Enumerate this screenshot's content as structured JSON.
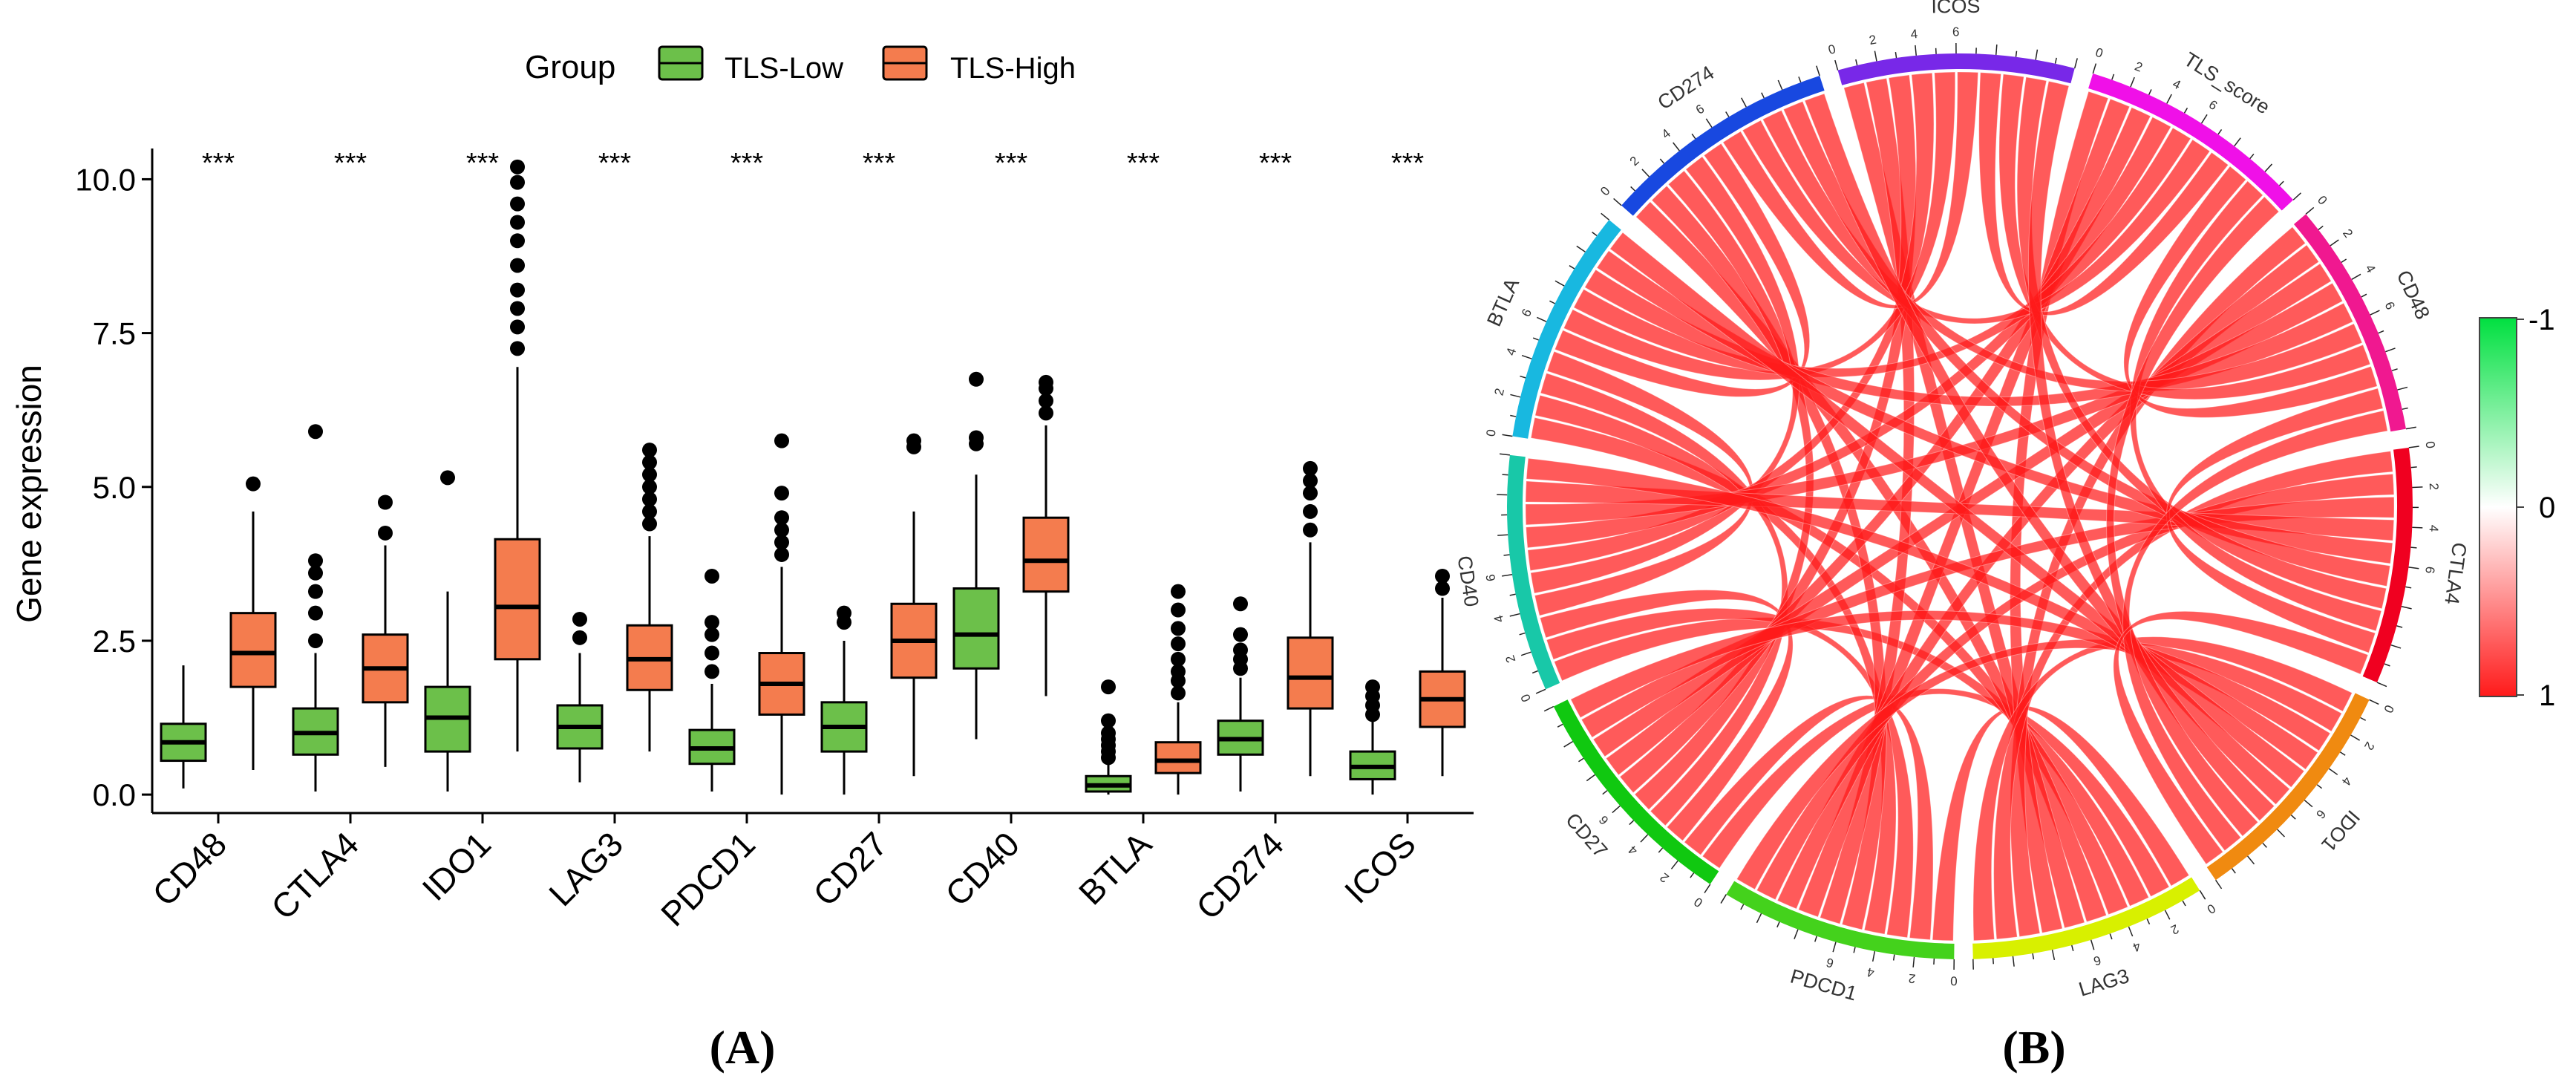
{
  "panel_labels": {
    "a": "(A)",
    "b": "(B)"
  },
  "colors": {
    "low": "#6CC04A",
    "high": "#F47C4E",
    "chord": "#FF1A1A",
    "axis": "#000000"
  },
  "chart_data": [
    {
      "type": "boxplot",
      "ylabel": "Gene expression",
      "xlabel": "",
      "ylim": [
        -0.3,
        10.5
      ],
      "yticks": [
        0.0,
        2.5,
        5.0,
        7.5,
        10.0
      ],
      "ytick_labels": [
        "0.0",
        "2.5",
        "5.0",
        "7.5",
        "10.0"
      ],
      "legend": {
        "title": "Group",
        "entries": [
          "TLS-Low",
          "TLS-High"
        ],
        "placement": "top"
      },
      "significance": "***",
      "categories": [
        "CD48",
        "CTLA4",
        "IDO1",
        "LAG3",
        "PDCD1",
        "CD27",
        "CD40",
        "BTLA",
        "CD274",
        "ICOS"
      ],
      "series": [
        {
          "name": "TLS-Low",
          "boxes": [
            {
              "wlo": 0.1,
              "q1": 0.55,
              "med": 0.85,
              "q3": 1.15,
              "whi": 2.1,
              "out": []
            },
            {
              "wlo": 0.05,
              "q1": 0.65,
              "med": 1.0,
              "q3": 1.4,
              "whi": 2.3,
              "out": [
                2.5,
                2.95,
                3.3,
                3.6,
                3.8,
                5.9
              ]
            },
            {
              "wlo": 0.05,
              "q1": 0.7,
              "med": 1.25,
              "q3": 1.75,
              "whi": 3.3,
              "out": [
                5.15
              ]
            },
            {
              "wlo": 0.2,
              "q1": 0.75,
              "med": 1.1,
              "q3": 1.45,
              "whi": 2.3,
              "out": [
                2.55,
                2.85
              ]
            },
            {
              "wlo": 0.05,
              "q1": 0.5,
              "med": 0.75,
              "q3": 1.05,
              "whi": 1.8,
              "out": [
                2.0,
                2.3,
                2.6,
                2.8,
                3.55
              ]
            },
            {
              "wlo": 0.0,
              "q1": 0.7,
              "med": 1.1,
              "q3": 1.5,
              "whi": 2.5,
              "out": [
                2.8,
                2.95
              ]
            },
            {
              "wlo": 0.9,
              "q1": 2.05,
              "med": 2.6,
              "q3": 3.35,
              "whi": 5.2,
              "out": [
                5.7,
                5.8,
                6.75
              ]
            },
            {
              "wlo": 0.0,
              "q1": 0.05,
              "med": 0.15,
              "q3": 0.3,
              "whi": 0.5,
              "out": [
                0.6,
                0.7,
                0.8,
                0.9,
                1.0,
                1.2,
                1.75
              ]
            },
            {
              "wlo": 0.05,
              "q1": 0.65,
              "med": 0.9,
              "q3": 1.2,
              "whi": 1.9,
              "out": [
                2.05,
                2.2,
                2.35,
                2.6,
                3.1
              ]
            },
            {
              "wlo": 0.0,
              "q1": 0.25,
              "med": 0.45,
              "q3": 0.7,
              "whi": 1.2,
              "out": [
                1.3,
                1.45,
                1.6,
                1.75
              ]
            }
          ]
        },
        {
          "name": "TLS-High",
          "boxes": [
            {
              "wlo": 0.4,
              "q1": 1.75,
              "med": 2.3,
              "q3": 2.95,
              "whi": 4.6,
              "out": [
                5.05
              ]
            },
            {
              "wlo": 0.45,
              "q1": 1.5,
              "med": 2.05,
              "q3": 2.6,
              "whi": 4.05,
              "out": [
                4.25,
                4.75
              ]
            },
            {
              "wlo": 0.7,
              "q1": 2.2,
              "med": 3.05,
              "q3": 4.15,
              "whi": 6.95,
              "out": [
                7.25,
                7.6,
                7.9,
                8.2,
                8.6,
                9.0,
                9.3,
                9.6,
                9.95,
                10.2
              ]
            },
            {
              "wlo": 0.7,
              "q1": 1.7,
              "med": 2.2,
              "q3": 2.75,
              "whi": 4.2,
              "out": [
                4.4,
                4.6,
                4.8,
                5.0,
                5.2,
                5.4,
                5.6
              ]
            },
            {
              "wlo": 0.0,
              "q1": 1.3,
              "med": 1.8,
              "q3": 2.3,
              "whi": 3.7,
              "out": [
                3.9,
                4.1,
                4.3,
                4.5,
                4.9,
                5.75
              ]
            },
            {
              "wlo": 0.3,
              "q1": 1.9,
              "med": 2.5,
              "q3": 3.1,
              "whi": 4.6,
              "out": [
                5.65,
                5.75
              ]
            },
            {
              "wlo": 1.6,
              "q1": 3.3,
              "med": 3.8,
              "q3": 4.5,
              "whi": 6.0,
              "out": [
                6.2,
                6.4,
                6.6,
                6.7
              ]
            },
            {
              "wlo": 0.0,
              "q1": 0.35,
              "med": 0.55,
              "q3": 0.85,
              "whi": 1.5,
              "out": [
                1.65,
                1.85,
                2.0,
                2.2,
                2.45,
                2.7,
                3.0,
                3.3
              ]
            },
            {
              "wlo": 0.3,
              "q1": 1.4,
              "med": 1.9,
              "q3": 2.55,
              "whi": 4.1,
              "out": [
                4.3,
                4.6,
                4.9,
                5.1,
                5.3
              ]
            },
            {
              "wlo": 0.3,
              "q1": 1.1,
              "med": 1.55,
              "q3": 2.0,
              "whi": 3.2,
              "out": [
                3.35,
                3.55
              ]
            }
          ]
        }
      ]
    },
    {
      "type": "chord",
      "sectors": [
        "LAG3",
        "PDCD1",
        "CD27",
        "CD40",
        "BTLA",
        "CD274",
        "ICOS",
        "TLS_score",
        "CD48",
        "CTLA4",
        "IDO1"
      ],
      "sector_colors": [
        "#D8F000",
        "#44D21C",
        "#10C810",
        "#18C8A8",
        "#18B8E0",
        "#1848E0",
        "#7828E8",
        "#F010E8",
        "#F01890",
        "#F00020",
        "#F08A10"
      ],
      "sector_tick_labels": [
        "0",
        "2",
        "4",
        "6"
      ],
      "colorbar": {
        "ticks": [
          "-1",
          "0",
          "1"
        ],
        "range": [
          -1,
          1
        ],
        "colors": [
          "#00E040",
          "#FFFFFF",
          "#FF1A1A"
        ]
      }
    }
  ]
}
